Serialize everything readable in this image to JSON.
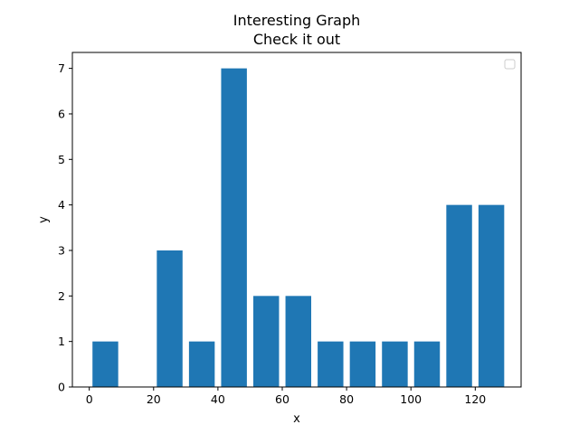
{
  "chart_data": {
    "type": "bar",
    "title": "Interesting Graph",
    "subtitle": "Check it out",
    "xlabel": "x",
    "ylabel": "y",
    "x": [
      5,
      25,
      35,
      45,
      55,
      65,
      75,
      85,
      95,
      105,
      115,
      125
    ],
    "values": [
      1,
      3,
      1,
      7,
      2,
      2,
      1,
      1,
      1,
      1,
      4,
      4
    ],
    "bar_width": 8,
    "xlim": [
      -5.25,
      134.25
    ],
    "ylim": [
      0,
      7.35
    ],
    "xticks": [
      0,
      20,
      40,
      60,
      80,
      100,
      120
    ],
    "yticks": [
      0,
      1,
      2,
      3,
      4,
      5,
      6,
      7
    ],
    "grid": false,
    "legend": "top-right (empty)",
    "bar_color": "#1f77b4"
  }
}
